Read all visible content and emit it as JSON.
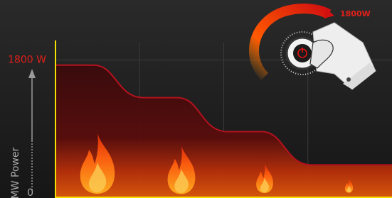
{
  "chart_data": {
    "type": "area",
    "categories": [
      null,
      null,
      null,
      null
    ],
    "values": [
      1730,
      1290,
      830,
      380
    ],
    "color": "#b3121e",
    "ylim": [
      0,
      2000
    ],
    "yticks": [
      {
        "value": 1800,
        "label": "1800 W"
      },
      0
    ],
    "y_label": "MW Power",
    "annotation": "1800W",
    "grid": true
  }
}
